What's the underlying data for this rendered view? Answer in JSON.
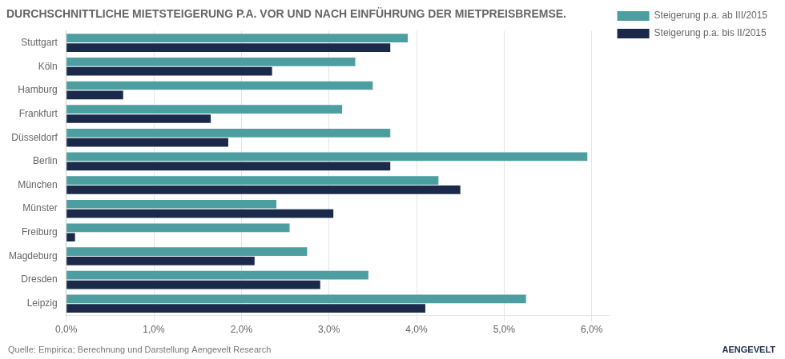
{
  "chart_data": {
    "type": "bar",
    "orientation": "horizontal",
    "title": "DURCHSCHNITTLICHE MIETSTEIGERUNG P.A. VOR UND NACH EINFÜHRUNG DER MIETPREISBREMSE.",
    "categories": [
      "Stuttgart",
      "Köln",
      "Hamburg",
      "Frankfurt",
      "Düsseldorf",
      "Berlin",
      "München",
      "Münster",
      "Freiburg",
      "Magdeburg",
      "Dresden",
      "Leipzig"
    ],
    "series": [
      {
        "name": "Steigerung p.a. ab III/2015",
        "color": "#4d9ea0",
        "values": [
          0.039,
          0.033,
          0.035,
          0.0315,
          0.037,
          0.0595,
          0.0425,
          0.024,
          0.0255,
          0.0275,
          0.0345,
          0.0525
        ]
      },
      {
        "name": "Steigerung p.a. bis II/2015",
        "color": "#1b2a4a",
        "values": [
          0.037,
          0.0235,
          0.0065,
          0.0165,
          0.0185,
          0.037,
          0.045,
          0.0305,
          0.001,
          0.0215,
          0.029,
          0.041
        ]
      }
    ],
    "xlim": [
      0,
      0.062
    ],
    "xticks": [
      {
        "value": 0.0,
        "label": "0,0%"
      },
      {
        "value": 0.01,
        "label": "1,0%"
      },
      {
        "value": 0.02,
        "label": "2,0%"
      },
      {
        "value": 0.03,
        "label": "3,0%"
      },
      {
        "value": 0.04,
        "label": "4,0%"
      },
      {
        "value": 0.05,
        "label": "5,0%"
      },
      {
        "value": 0.06,
        "label": "6,0%"
      }
    ],
    "grid": true,
    "legend": "right",
    "annotations": [
      "Quelle: Empirica; Berechnung und Darstellung Aengevelt Research",
      "AENGEVELT"
    ]
  }
}
